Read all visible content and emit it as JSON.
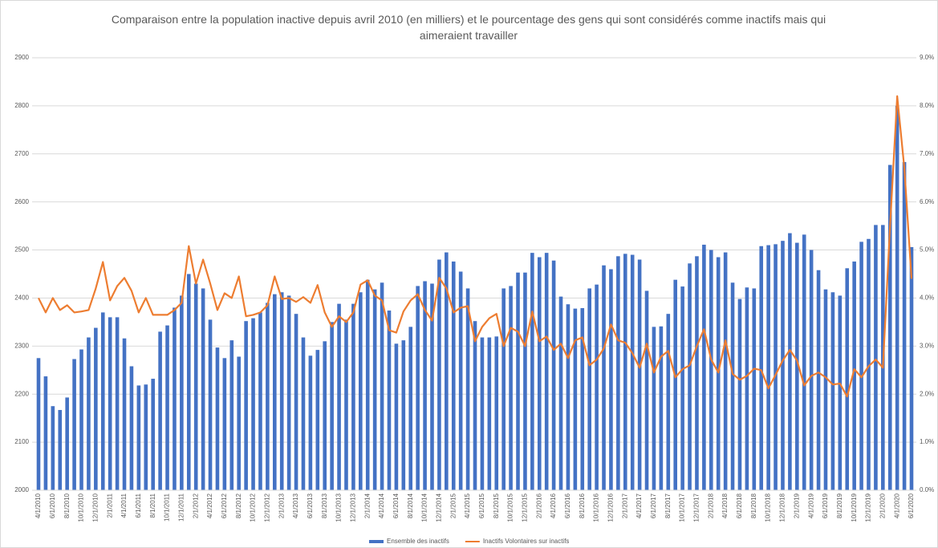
{
  "chart_data": {
    "type": "bar_line",
    "title": "Comparaison entre la population inactive depuis avril 2010 (en milliers) et le pourcentage des gens qui sont considérés comme inactifs mais qui aimeraient travailler",
    "categories": [
      "4/1/2010",
      null,
      "6/1/2010",
      null,
      "8/1/2010",
      null,
      "10/1/2010",
      null,
      "12/1/2010",
      null,
      "2/1/2011",
      null,
      "4/1/2011",
      null,
      "6/1/2011",
      null,
      "8/1/2011",
      null,
      "10/1/2011",
      null,
      "12/1/2011",
      null,
      "2/1/2012",
      null,
      "4/1/2012",
      null,
      "6/1/2012",
      null,
      "8/1/2012",
      null,
      "10/1/2012",
      null,
      "12/1/2012",
      null,
      "2/1/2013",
      null,
      "4/1/2013",
      null,
      "6/1/2013",
      null,
      "8/1/2013",
      null,
      "10/1/2013",
      null,
      "12/1/2013",
      null,
      "2/1/2014",
      null,
      "4/1/2014",
      null,
      "6/1/2014",
      null,
      "8/1/2014",
      null,
      "10/1/2014",
      null,
      "12/1/2014",
      null,
      "2/1/2015",
      null,
      "4/1/2015",
      null,
      "6/1/2015",
      null,
      "8/1/2015",
      null,
      "10/1/2015",
      null,
      "12/1/2015",
      null,
      "2/1/2016",
      null,
      "4/1/2016",
      null,
      "6/1/2016",
      null,
      "8/1/2016",
      null,
      "10/1/2016",
      null,
      "12/1/2016",
      null,
      "2/1/2017",
      null,
      "4/1/2017",
      null,
      "6/1/2017",
      null,
      "8/1/2017",
      null,
      "10/1/2017",
      null,
      "12/1/2017",
      null,
      "2/1/2018",
      null,
      "4/1/2018",
      null,
      "6/1/2018",
      null,
      "8/1/2018",
      null,
      "10/1/2018",
      null,
      "12/1/2018",
      null,
      "2/1/2019",
      null,
      "4/1/2019",
      null,
      "6/1/2019",
      null,
      "8/1/2019",
      null,
      "10/1/2019",
      null,
      "12/1/2019",
      null,
      "2/1/2020",
      null,
      "4/1/2020",
      null,
      "6/1/2020"
    ],
    "series": [
      {
        "name": "Ensemble des inactifs",
        "color": "#4472c4",
        "kind": "bar",
        "values": [
          2275,
          2237,
          2175,
          2167,
          2193,
          2273,
          2293,
          2318,
          2338,
          2370,
          2360,
          2360,
          2316,
          2258,
          2218,
          2220,
          2232,
          2330,
          2343,
          2380,
          2405,
          2450,
          2430,
          2420,
          2355,
          2297,
          2275,
          2312,
          2278,
          2352,
          2358,
          2370,
          2390,
          2408,
          2412,
          2405,
          2367,
          2318,
          2280,
          2292,
          2310,
          2350,
          2388,
          2355,
          2388,
          2412,
          2438,
          2418,
          2432,
          2374,
          2305,
          2312,
          2340,
          2425,
          2435,
          2430,
          2480,
          2495,
          2476,
          2455,
          2420,
          2352,
          2318,
          2318,
          2320,
          2420,
          2425,
          2453,
          2453,
          2494,
          2485,
          2494,
          2478,
          2403,
          2387,
          2378,
          2379,
          2420,
          2428,
          2468,
          2460,
          2487,
          2492,
          2490,
          2480,
          2415,
          2340,
          2341,
          2367,
          2438,
          2424,
          2472,
          2487,
          2511,
          2500,
          2485,
          2495,
          2432,
          2398,
          2422,
          2420,
          2508,
          2510,
          2512,
          2519,
          2535,
          2515,
          2532,
          2500,
          2458,
          2418,
          2412,
          2405,
          2462,
          2476,
          2517,
          2523,
          2552,
          2552,
          2677,
          2800,
          2683,
          2506
        ]
      },
      {
        "name": "Inactifs Volontaires sur inactifs",
        "color": "#ed7d31",
        "kind": "line",
        "axis": "y2",
        "values": [
          4.0,
          3.7,
          4.0,
          3.75,
          3.85,
          3.7,
          3.72,
          3.75,
          4.2,
          4.75,
          3.95,
          4.25,
          4.42,
          4.15,
          3.7,
          4.0,
          3.65,
          3.65,
          3.65,
          3.75,
          3.9,
          5.08,
          4.3,
          4.8,
          4.3,
          3.75,
          4.1,
          4.0,
          4.45,
          3.62,
          3.65,
          3.7,
          3.85,
          4.45,
          3.98,
          4.0,
          3.92,
          4.02,
          3.9,
          4.27,
          3.7,
          3.4,
          3.62,
          3.5,
          3.7,
          4.28,
          4.37,
          4.05,
          3.95,
          3.33,
          3.28,
          3.72,
          3.95,
          4.08,
          3.75,
          3.53,
          4.42,
          4.2,
          3.7,
          3.8,
          3.83,
          3.1,
          3.4,
          3.58,
          3.67,
          3.0,
          3.38,
          3.3,
          3.0,
          3.72,
          3.1,
          3.2,
          2.92,
          3.05,
          2.75,
          3.12,
          3.18,
          2.6,
          2.72,
          2.95,
          3.45,
          3.12,
          3.07,
          2.85,
          2.55,
          3.05,
          2.45,
          2.78,
          2.9,
          2.35,
          2.52,
          2.6,
          3.0,
          3.35,
          2.72,
          2.45,
          3.12,
          2.42,
          2.3,
          2.38,
          2.53,
          2.5,
          2.12,
          2.4,
          2.7,
          2.92,
          2.7,
          2.18,
          2.38,
          2.45,
          2.35,
          2.2,
          2.22,
          1.95,
          2.52,
          2.35,
          2.58,
          2.72,
          2.55,
          5.5,
          8.2,
          6.7,
          4.4
        ]
      }
    ],
    "ylim": [
      2000,
      2900
    ],
    "yticks": [
      2000,
      2100,
      2200,
      2300,
      2400,
      2500,
      2600,
      2700,
      2800,
      2900
    ],
    "y2lim": [
      0,
      9
    ],
    "y2ticks": [
      {
        "value": 0,
        "label": "0.0%"
      },
      {
        "value": 1,
        "label": "1.0%"
      },
      {
        "value": 2,
        "label": "2.0%"
      },
      {
        "value": 3,
        "label": "3.0%"
      },
      {
        "value": 4,
        "label": "4.0%"
      },
      {
        "value": 5,
        "label": "5.0%"
      },
      {
        "value": 6,
        "label": "6.0%"
      },
      {
        "value": 7,
        "label": "7.0%"
      },
      {
        "value": 8,
        "label": "8.0%"
      },
      {
        "value": 9,
        "label": "9.0%"
      }
    ],
    "grid": true,
    "legend": "bottom"
  }
}
